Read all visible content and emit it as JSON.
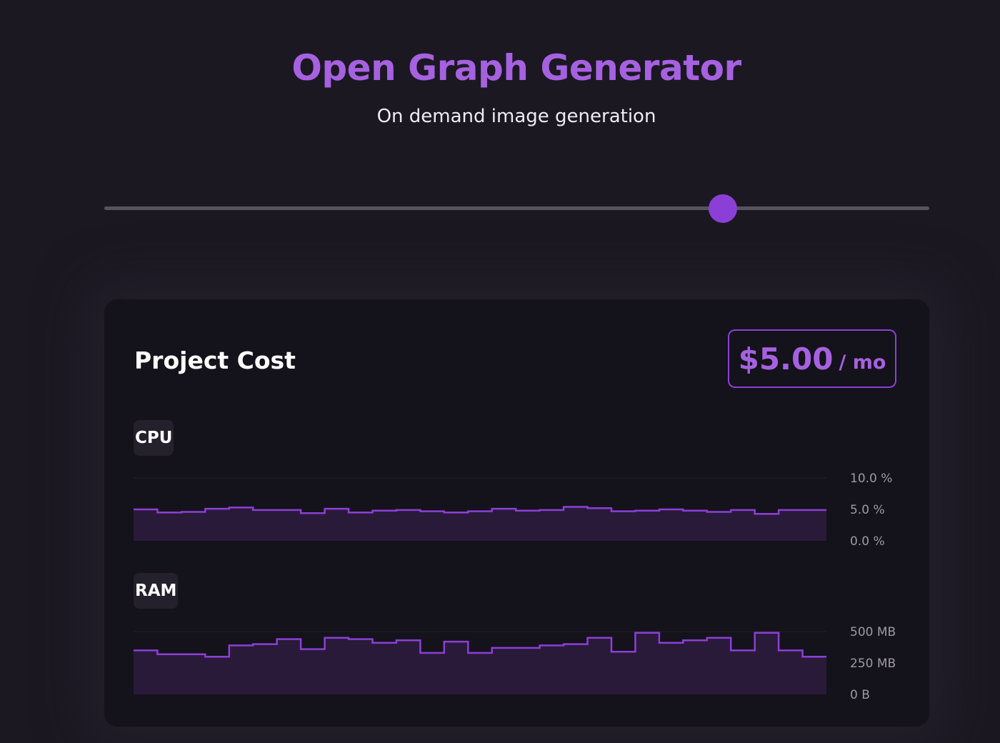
{
  "header": {
    "title": "Open Graph Generator",
    "subtitle": "On demand image generation"
  },
  "slider": {
    "value_fraction": 0.75
  },
  "card": {
    "title": "Project Cost",
    "price": "$5.00",
    "price_period": "/ mo"
  },
  "colors": {
    "accent": "#8c3fd6",
    "accent_text": "#a661e0",
    "fill": "#2a1a3a",
    "background": "#1b1822",
    "card": "#14121b"
  },
  "chart_data": [
    {
      "type": "area",
      "name": "CPU",
      "step": true,
      "ylabel": "",
      "ylim": [
        0,
        10
      ],
      "yticks": [
        "0.0 %",
        "5.0 %",
        "10.0 %"
      ],
      "ytick_values": [
        0,
        5,
        10
      ],
      "values": [
        5.0,
        4.5,
        4.6,
        5.1,
        5.3,
        4.9,
        4.9,
        4.4,
        5.1,
        4.5,
        4.8,
        4.9,
        4.7,
        4.5,
        4.7,
        5.1,
        4.8,
        4.9,
        5.4,
        5.2,
        4.7,
        4.8,
        5.0,
        4.8,
        4.6,
        4.9,
        4.3,
        4.9,
        4.9
      ]
    },
    {
      "type": "area",
      "name": "RAM",
      "step": true,
      "ylabel": "",
      "ylim": [
        0,
        500
      ],
      "yticks": [
        "0 B",
        "250 MB",
        "500 MB"
      ],
      "ytick_values": [
        0,
        250,
        500
      ],
      "values": [
        350,
        320,
        320,
        300,
        390,
        400,
        440,
        360,
        450,
        440,
        410,
        430,
        330,
        420,
        330,
        370,
        370,
        390,
        400,
        450,
        340,
        490,
        410,
        430,
        450,
        350,
        490,
        350,
        300
      ]
    }
  ]
}
